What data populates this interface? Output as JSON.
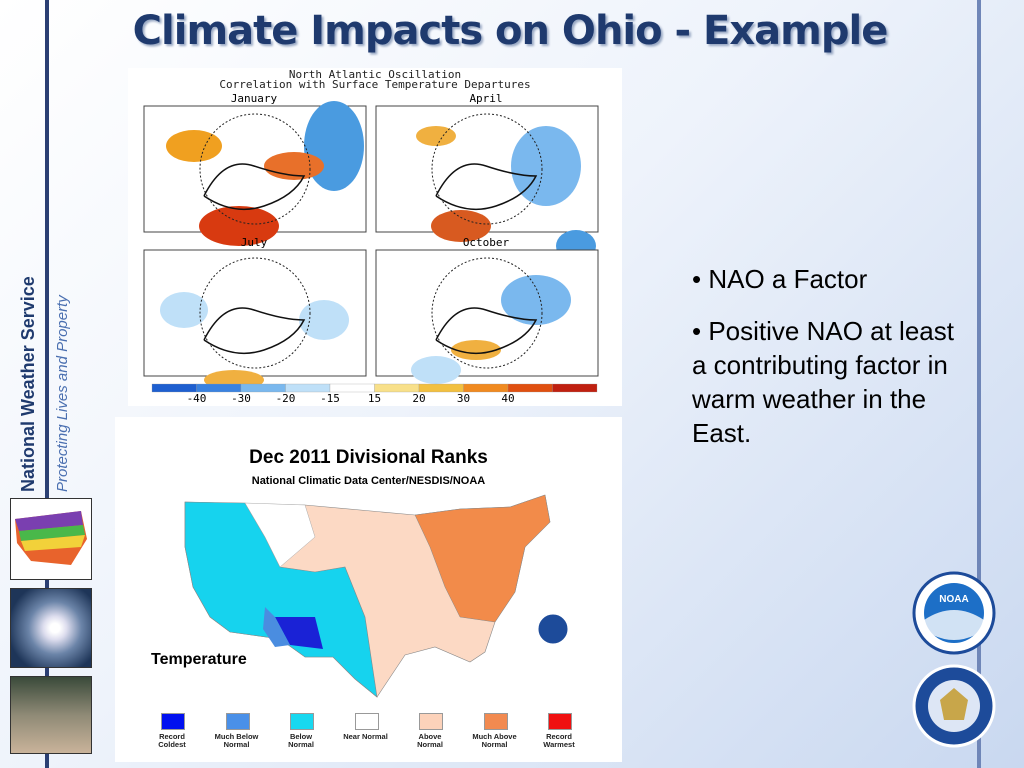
{
  "title": "Climate Impacts on Ohio - Example",
  "sidebar": {
    "org": "National Weather Service",
    "tagline": "Protecting Lives and Property"
  },
  "nao_figure": {
    "title": "North Atlantic Oscillation",
    "subtitle": "Correlation with Surface Temperature Departures",
    "panels": [
      "January",
      "April",
      "July",
      "October"
    ],
    "colorbar": [
      -40,
      -30,
      -20,
      -15,
      15,
      20,
      30,
      40
    ]
  },
  "ranks_map": {
    "title": "Dec 2011 Divisional Ranks",
    "subtitle": "National Climatic Data Center/NESDIS/NOAA",
    "variable": "Temperature",
    "legend": [
      "Record Coldest",
      "Much Below Normal",
      "Below Normal",
      "Near Normal",
      "Above Normal",
      "Much Above Normal",
      "Record Warmest"
    ]
  },
  "bullets": [
    "• NAO a Factor",
    "• Positive NAO at least a contributing factor in warm weather in the East."
  ],
  "logos": {
    "noaa": "NOAA"
  }
}
